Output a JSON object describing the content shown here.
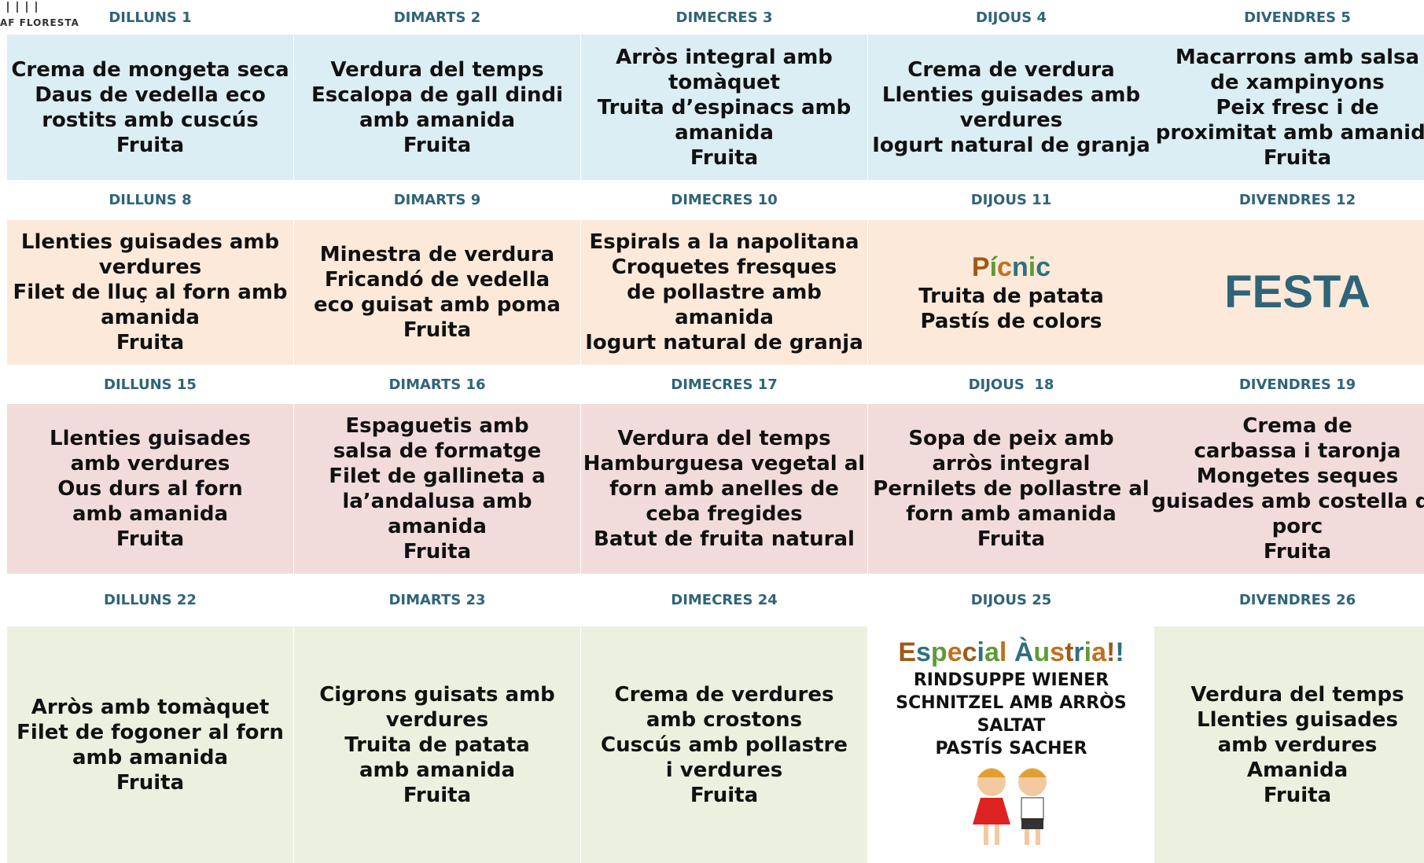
{
  "logo": "AF FLORESTA",
  "weeks": [
    {
      "color": "#daeef3",
      "days": [
        {
          "header": "DILLUNS 1",
          "lines": [
            "Crema de mongeta seca",
            "Daus de vedella eco",
            "rostits amb cuscús",
            "Fruita"
          ]
        },
        {
          "header": "DIMARTS 2",
          "lines": [
            "Verdura del temps",
            "Escalopa de gall dindi",
            "amb amanida",
            "Fruita"
          ]
        },
        {
          "header": "DIMECRES 3",
          "lines": [
            "Arròs integral amb",
            "tomàquet",
            "Truita d’espinacs amb",
            "amanida",
            "Fruita"
          ]
        },
        {
          "header": "DIJOUS 4",
          "lines": [
            "Crema de verdura",
            "Llenties guisades amb",
            "verdures",
            "Iogurt natural de granja"
          ]
        },
        {
          "header": "DIVENDRES 5",
          "lines": [
            "Macarrons amb salsa",
            "de xampinyons",
            "Peix fresc i de",
            "proximitat amb amanida",
            "Fruita"
          ]
        }
      ]
    },
    {
      "color": "#fde9d9",
      "days": [
        {
          "header": "DILLUNS 8",
          "lines": [
            "Llenties guisades amb",
            "verdures",
            "Filet de lluç al forn amb",
            "amanida",
            "Fruita"
          ]
        },
        {
          "header": "DIMARTS 9",
          "lines": [
            "Minestra de verdura",
            "Fricandó de vedella",
            "eco guisat amb poma",
            "Fruita"
          ]
        },
        {
          "header": "DIMECRES 10",
          "lines": [
            "Espirals a la napolitana",
            "Croquetes fresques",
            "de pollastre amb",
            "amanida",
            "Iogurt natural de granja"
          ]
        },
        {
          "header": "DIJOUS 11",
          "title": "Pícnic",
          "title_colors": [
            "#9c5a1a",
            "#5f9a35",
            "#c0701e",
            "#2f7080",
            "#5f9a35",
            "#2f7080"
          ],
          "lines": [
            "Truita de patata",
            "Pastís de colors"
          ]
        },
        {
          "header": "DIVENDRES 12",
          "big": "FESTA"
        }
      ]
    },
    {
      "color": "#f2dcdb",
      "days": [
        {
          "header": "DILLUNS 15",
          "lines": [
            "Llenties guisades",
            "amb verdures",
            "Ous durs al forn",
            "amb amanida",
            "Fruita"
          ]
        },
        {
          "header": "DIMARTS 16",
          "lines": [
            "Espaguetis amb",
            "salsa de formatge",
            "Filet de gallineta a",
            "la’andalusa amb",
            "amanida",
            "Fruita"
          ]
        },
        {
          "header": "DIMECRES 17",
          "lines": [
            "Verdura del temps",
            "Hamburguesa vegetal al",
            "forn amb anelles de",
            "ceba fregides",
            "Batut de fruita natural"
          ]
        },
        {
          "header": "DIJOUS  18",
          "lines": [
            "Sopa de peix amb",
            "arròs integral",
            "Pernilets de pollastre al",
            "forn amb amanida",
            "Fruita"
          ]
        },
        {
          "header": "DIVENDRES 19",
          "lines": [
            "Crema de",
            "carbassa i taronja",
            "Mongetes seques",
            "guisades amb costella de",
            "porc",
            "Fruita"
          ]
        }
      ]
    },
    {
      "color": "#ebf1de",
      "days": [
        {
          "header": "DILLUNS 22",
          "lines": [
            "Arròs amb tomàquet",
            "Filet de fogoner al forn",
            "amb amanida",
            "Fruita"
          ]
        },
        {
          "header": "DIMARTS 23",
          "lines": [
            "Cigrons guisats amb",
            "verdures",
            "Truita de patata",
            "amb amanida",
            "Fruita"
          ]
        },
        {
          "header": "DIMECRES 24",
          "lines": [
            "Crema de verdures",
            "amb crostons",
            "Cuscús amb pollastre",
            "i verdures",
            "Fruita"
          ]
        },
        {
          "header": "DIJOUS 25",
          "background": "#ffffff",
          "small": true,
          "title": "Especial Àustria!!",
          "title_colors": [
            "#9c5a1a",
            "#2f7080",
            "#5f9a35",
            "#c0701e"
          ],
          "lines": [
            "RINDSUPPE WIENER",
            "SCHNITZEL AMB ARRÒS",
            "SALTAT",
            "PASTÍS SACHER"
          ],
          "picture": true
        },
        {
          "header": "DIVENDRES 26",
          "lines": [
            "Verdura del temps",
            "Llenties guisades",
            "amb verdures",
            "Amanida",
            "Fruita"
          ]
        }
      ]
    }
  ]
}
